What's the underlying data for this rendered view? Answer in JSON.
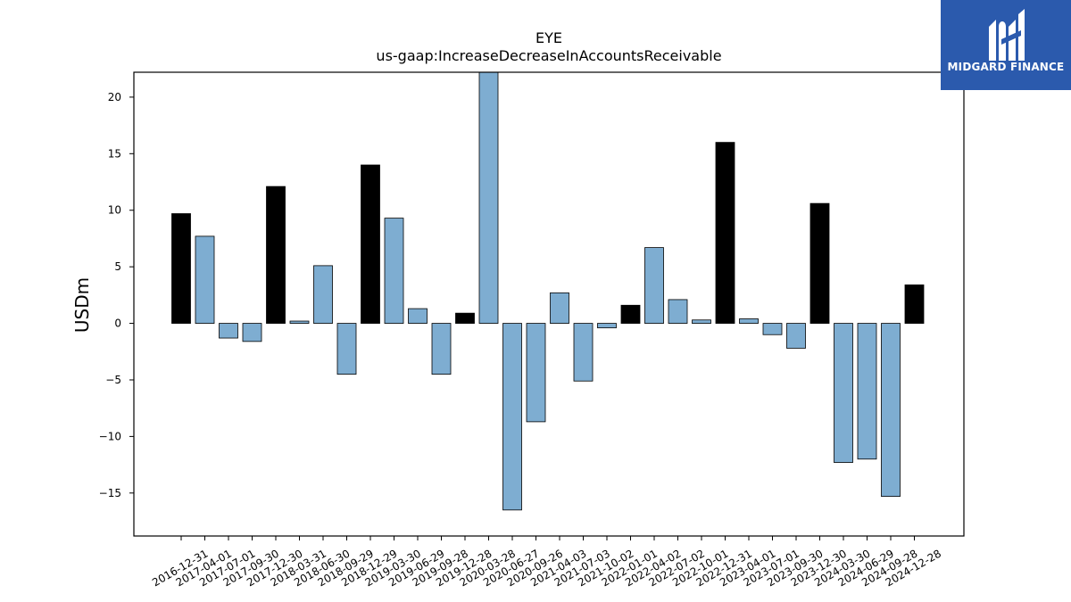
{
  "chart_data": {
    "type": "bar",
    "title": "EYE",
    "subtitle": "us-gaap:IncreaseDecreaseInAccountsReceivable",
    "xlabel": "",
    "ylabel": "USDm",
    "ylim": [
      -18.8,
      22.2
    ],
    "yticks": [
      -15,
      -10,
      -5,
      0,
      5,
      10,
      15,
      20
    ],
    "ytick_labels": [
      "−15",
      "−10",
      "−5",
      "0",
      "5",
      "10",
      "15",
      "20"
    ],
    "grid": false,
    "categories": [
      "2016-12-31",
      "2017-04-01",
      "2017-07-01",
      "2017-09-30",
      "2017-12-30",
      "2018-03-31",
      "2018-06-30",
      "2018-09-29",
      "2018-12-29",
      "2019-03-30",
      "2019-06-29",
      "2019-09-28",
      "2019-12-28",
      "2020-03-28",
      "2020-06-27",
      "2020-09-26",
      "2021-04-03",
      "2021-07-03",
      "2021-10-02",
      "2022-01-01",
      "2022-04-02",
      "2022-07-02",
      "2022-10-01",
      "2022-12-31",
      "2023-04-01",
      "2023-07-01",
      "2023-09-30",
      "2023-12-30",
      "2024-03-30",
      "2024-06-29",
      "2024-09-28",
      "2024-12-28"
    ],
    "values": [
      9.7,
      7.7,
      -1.3,
      -1.6,
      12.1,
      0.2,
      5.1,
      -4.5,
      14.0,
      9.3,
      1.3,
      -4.5,
      0.9,
      22.2,
      -16.5,
      -8.7,
      2.7,
      -5.1,
      -0.4,
      1.6,
      6.7,
      2.1,
      0.3,
      16.0,
      0.4,
      -1.0,
      -2.2,
      10.6,
      -12.3,
      -12.0,
      -15.3,
      3.4
    ],
    "bar_colors": [
      "#000000",
      "#7eadd1",
      "#7eadd1",
      "#7eadd1",
      "#000000",
      "#7eadd1",
      "#7eadd1",
      "#7eadd1",
      "#000000",
      "#7eadd1",
      "#7eadd1",
      "#7eadd1",
      "#000000",
      "#7eadd1",
      "#7eadd1",
      "#7eadd1",
      "#7eadd1",
      "#7eadd1",
      "#7eadd1",
      "#000000",
      "#7eadd1",
      "#7eadd1",
      "#7eadd1",
      "#000000",
      "#7eadd1",
      "#7eadd1",
      "#7eadd1",
      "#000000",
      "#7eadd1",
      "#7eadd1",
      "#7eadd1",
      "#000000"
    ]
  },
  "logo": {
    "text": "MIDGARD FINANCE",
    "color": "#2b5aad"
  }
}
